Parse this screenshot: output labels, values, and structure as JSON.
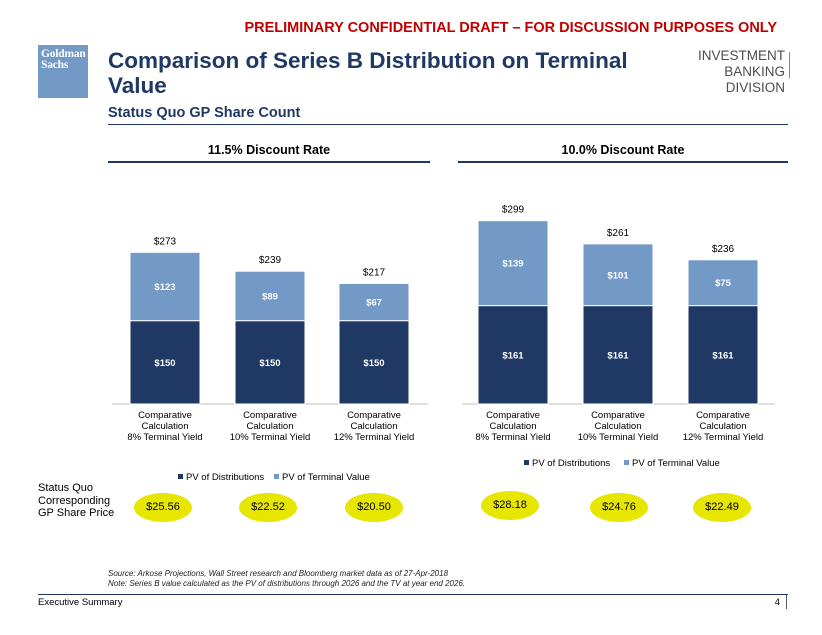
{
  "banner": "PRELIMINARY CONFIDENTIAL DRAFT – FOR DISCUSSION PURPOSES ONLY",
  "logo": {
    "line1": "Goldman",
    "line2": "Sachs"
  },
  "title": "Comparison of Series B Distribution on Terminal Value",
  "subtitle": "Status Quo GP Share Count",
  "division": {
    "line1": "INVESTMENT BANKING",
    "line2": "DIVISION"
  },
  "colors": {
    "distributions": "#1f3864",
    "terminal_value": "#7399c6",
    "price_bubble": "#e6e600",
    "title": "#1f3864",
    "banner": "#c00000"
  },
  "chart_data": [
    {
      "type": "bar",
      "stacked": true,
      "title": "11.5% Discount Rate",
      "categories": [
        [
          "Comparative",
          "Calculation",
          "8% Terminal Yield"
        ],
        [
          "Comparative",
          "Calculation",
          "10% Terminal Yield"
        ],
        [
          "Comparative",
          "Calculation",
          "12% Terminal Yield"
        ]
      ],
      "series": [
        {
          "name": "PV of Distributions",
          "values": [
            150,
            150,
            150
          ],
          "labels": [
            "$150",
            "$150",
            "$150"
          ]
        },
        {
          "name": "PV of Terminal Value",
          "values": [
            123,
            89,
            67
          ],
          "labels": [
            "$123",
            "$89",
            "$67"
          ]
        }
      ],
      "totals": [
        "$273",
        "$239",
        "$217"
      ],
      "ylim": [
        0,
        300
      ],
      "legend": "bottom"
    },
    {
      "type": "bar",
      "stacked": true,
      "title": "10.0% Discount Rate",
      "categories": [
        [
          "Comparative",
          "Calculation",
          "8% Terminal Yield"
        ],
        [
          "Comparative",
          "Calculation",
          "10% Terminal Yield"
        ],
        [
          "Comparative",
          "Calculation",
          "12% Terminal Yield"
        ]
      ],
      "series": [
        {
          "name": "PV of Distributions",
          "values": [
            161,
            161,
            161
          ],
          "labels": [
            "$161",
            "$161",
            "$161"
          ]
        },
        {
          "name": "PV of Terminal Value",
          "values": [
            139,
            101,
            75
          ],
          "labels": [
            "$139",
            "$101",
            "$75"
          ]
        }
      ],
      "totals": [
        "$299",
        "$261",
        "$236"
      ],
      "ylim": [
        0,
        300
      ],
      "legend": "bottom"
    }
  ],
  "share_price": {
    "label_lines": [
      "Status Quo",
      "Corresponding",
      "GP Share Price"
    ],
    "left": [
      "$25.56",
      "$22.52",
      "$20.50"
    ],
    "right": [
      "$28.18",
      "$24.76",
      "$22.49"
    ]
  },
  "source": "Source: Arkose Projections, Wall Street research and Bloomberg market data as of 27-Apr-2018",
  "note": "Note: Series B value calculated as the PV of distributions through 2026 and the TV at year end 2026.",
  "footer": "Executive Summary",
  "page_number": "4"
}
